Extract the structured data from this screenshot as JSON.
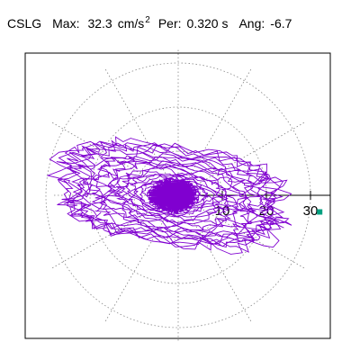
{
  "header": {
    "station": "CSLG",
    "max_label": "Max:",
    "max_value": "32.3",
    "max_unit": "cm/s",
    "max_unit_exp": "2",
    "per_label": "Per:",
    "per_value": "0.320 s",
    "ang_label": "Ang:",
    "ang_value": "-6.7"
  },
  "chart_data": {
    "type": "line",
    "coordinate_system": "polar",
    "title": "",
    "radial_ticks": [
      "10",
      "20",
      "30"
    ],
    "radial_range": [
      0,
      33
    ],
    "angular_gridline_step_deg": 30,
    "grid": true,
    "grid_style": "dotted",
    "series": [
      {
        "color": "#8000d0",
        "peak_amplitude": 32.3,
        "peak_angle_deg": -6.7
      }
    ],
    "peak_marker_color": "#00a080"
  }
}
